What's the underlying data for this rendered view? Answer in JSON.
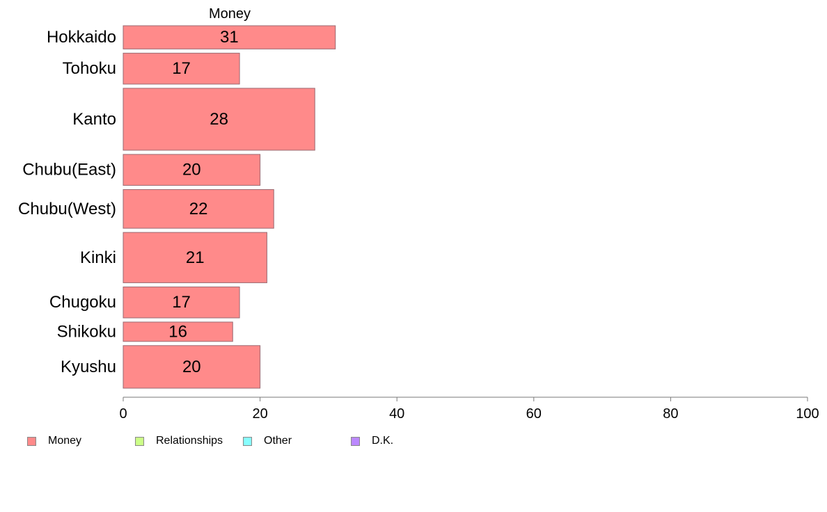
{
  "chart_data": {
    "type": "bar",
    "orientation": "horizontal",
    "variable_width": true,
    "title": "Money",
    "categories": [
      "Hokkaido",
      "Tohoku",
      "Kanto",
      "Chubu(East)",
      "Chubu(West)",
      "Kinki",
      "Chugoku",
      "Shikoku",
      "Kyushu"
    ],
    "series": [
      {
        "name": "Money",
        "color": "#ff8a8a",
        "values": [
          31,
          17,
          28,
          20,
          22,
          21,
          17,
          16,
          20
        ]
      }
    ],
    "data_labels": [
      "31",
      "17",
      "28",
      "20",
      "22",
      "21",
      "17",
      "16",
      "20"
    ],
    "relative_bar_widths": [
      3,
      4,
      8,
      4,
      5,
      6.5,
      4,
      2.5,
      5.5
    ],
    "xlim": [
      0,
      100
    ],
    "x_ticks": [
      0,
      20,
      40,
      60,
      80,
      100
    ],
    "x_tick_labels": [
      "0",
      "20",
      "40",
      "60",
      "80",
      "100"
    ],
    "grid": false,
    "legend_position": "bottom-left",
    "legend": [
      {
        "label": "Money",
        "color": "#ff8a8a"
      },
      {
        "label": "Relationships",
        "color": "#ccff88"
      },
      {
        "label": "Other",
        "color": "#88ffff"
      },
      {
        "label": "D.K.",
        "color": "#bb88ff"
      }
    ]
  }
}
